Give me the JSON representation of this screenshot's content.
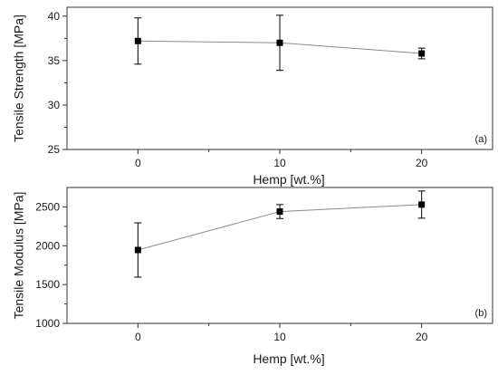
{
  "chart_data": [
    {
      "type": "line",
      "panel_label": "(a)",
      "xlabel": "Hemp [wt.%]",
      "ylabel": "Tensile Strength [MPa]",
      "x": [
        0,
        10,
        20
      ],
      "x_ticks": [
        0,
        10,
        20
      ],
      "y_ticks": [
        25,
        30,
        35,
        40
      ],
      "xlim": [
        -5,
        25
      ],
      "ylim": [
        25,
        41
      ],
      "grid": false,
      "series": [
        {
          "values": [
            37.2,
            37.0,
            35.8
          ],
          "error": [
            2.6,
            3.1,
            0.6
          ],
          "marker": "square",
          "line_color": "#8c8c8c",
          "marker_color": "#000000"
        }
      ]
    },
    {
      "type": "line",
      "panel_label": "(b)",
      "xlabel": "Hemp [wt.%]",
      "ylabel": "Tensile Modulus [MPa]",
      "x": [
        0,
        10,
        20
      ],
      "x_ticks": [
        0,
        10,
        20
      ],
      "y_ticks": [
        1000,
        1500,
        2000,
        2500
      ],
      "xlim": [
        -5,
        25
      ],
      "ylim": [
        1000,
        2750
      ],
      "grid": false,
      "series": [
        {
          "values": [
            1945,
            2440,
            2530
          ],
          "error": [
            350,
            90,
            175
          ],
          "marker": "square",
          "line_color": "#8c8c8c",
          "marker_color": "#000000"
        }
      ]
    }
  ]
}
